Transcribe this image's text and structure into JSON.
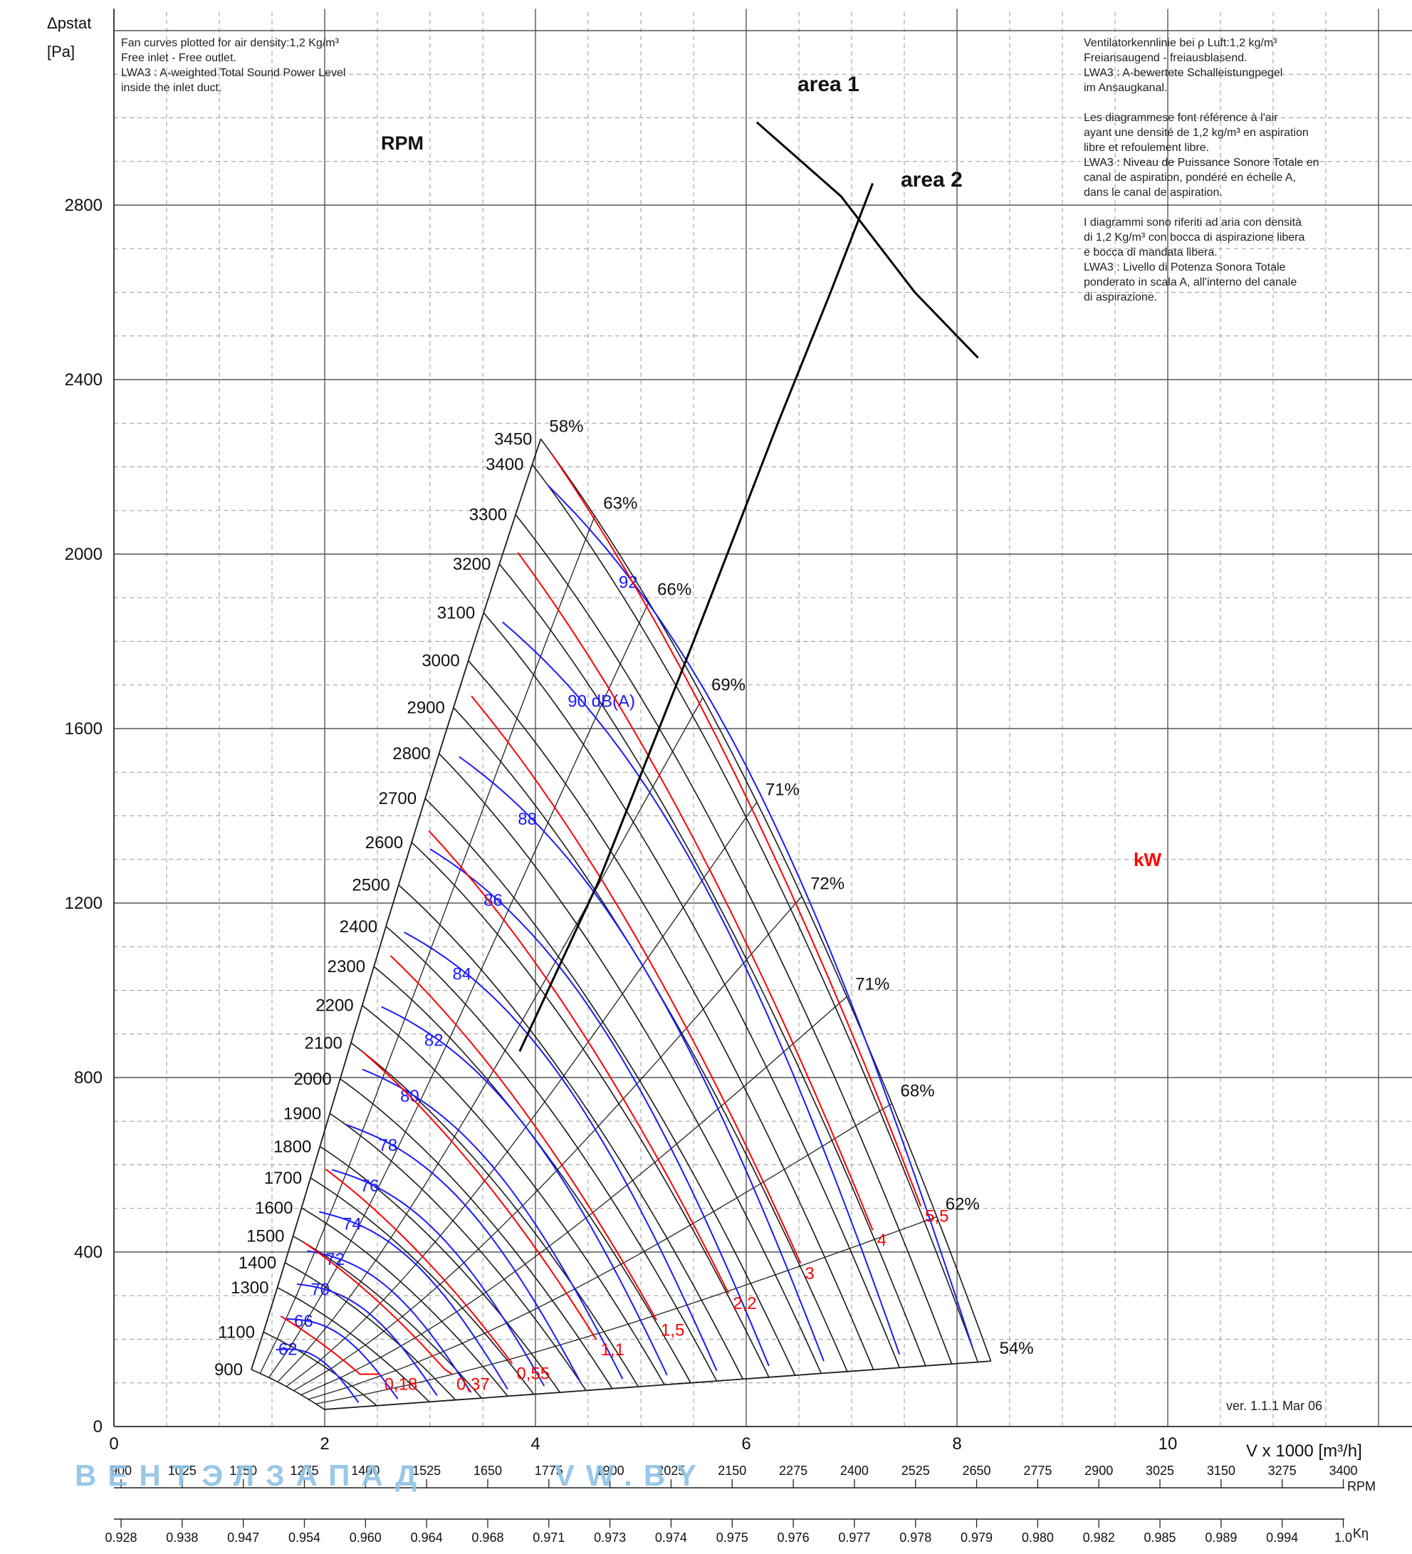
{
  "notes": {
    "left": "Fan curves plotted for air density:1,2 Kg/m³\nFree inlet - Free outlet.\nLWA3 : A-weighted Total Sound Power Level\ninside the inlet duct.",
    "right": "Ventilatorkennlinie bei ρ Luft:1,2 kg/m³\nFreiansaugend - freiausblasend.\nLWA3 : A-bewertete Schalleistungpegel\nim Ansaugkanal.\n\nLes diagrammese font référence à l'air\nayant une densité de 1,2 kg/m³ en aspiration\nlibre et refoulement libre.\nLWA3 : Niveau de Puissance Sonore Totale en\ncanal de aspiration, pondéré en échelle A,\ndans le canal de aspiration.\n\nI diagrammi sono riferiti ad aria con densità\ndi 1,2 Kg/m³ con bocca di aspirazione libera\ne bocca di mandata libera.\nLWA3 : Livello di Potenza Sonora Totale\nponderato in scala A, all'interno del canale\ndi aspirazione."
  },
  "version": "ver. 1.1.1 Mar 06",
  "watermark": "ВЕНТЭЛЗАПАД",
  "watermark_url": "VW.BY",
  "colors": {
    "speed": "#1a1a1a",
    "sound": "#1a1aff",
    "power": "#ff0000",
    "grid": "#555555",
    "area": "#000000"
  },
  "chart_data": {
    "type": "line",
    "ylabel": "Δpstat",
    "yunit": "[Pa]",
    "xlabel": "V x 1000 [m³/h]",
    "xlim": [
      0,
      12.6
    ],
    "ylim": [
      0,
      3250
    ],
    "x_ticks": [
      0,
      2,
      4,
      6,
      8,
      10
    ],
    "y_ticks": [
      0,
      400,
      800,
      1200,
      1600,
      2000,
      2400,
      2800
    ],
    "grid": true,
    "rpm_header": "RPM",
    "speed_curves": [
      {
        "rpm": 900,
        "label": "900"
      },
      {
        "rpm": 1100,
        "label": "1100"
      },
      {
        "rpm": 1300,
        "label": "1300"
      },
      {
        "rpm": 1400,
        "label": "1400"
      },
      {
        "rpm": 1500,
        "label": "1500"
      },
      {
        "rpm": 1600,
        "label": "1600"
      },
      {
        "rpm": 1700,
        "label": "1700"
      },
      {
        "rpm": 1800,
        "label": "1800"
      },
      {
        "rpm": 1900,
        "label": "1900"
      },
      {
        "rpm": 2000,
        "label": "2000"
      },
      {
        "rpm": 2100,
        "label": "2100"
      },
      {
        "rpm": 2200,
        "label": "2200"
      },
      {
        "rpm": 2300,
        "label": "2300"
      },
      {
        "rpm": 2400,
        "label": "2400"
      },
      {
        "rpm": 2500,
        "label": "2500"
      },
      {
        "rpm": 2600,
        "label": "2600"
      },
      {
        "rpm": 2700,
        "label": "2700"
      },
      {
        "rpm": 2800,
        "label": "2800"
      },
      {
        "rpm": 2900,
        "label": "2900"
      },
      {
        "rpm": 3000,
        "label": "3000"
      },
      {
        "rpm": 3100,
        "label": "3100"
      },
      {
        "rpm": 3200,
        "label": "3200"
      },
      {
        "rpm": 3300,
        "label": "3300"
      },
      {
        "rpm": 3400,
        "label": "3400"
      },
      {
        "rpm": 3450,
        "label": "3450"
      }
    ],
    "efficiency_labels": [
      "58%",
      "63%",
      "66%",
      "69%",
      "71%",
      "72%",
      "71%",
      "68%",
      "62%",
      "54%"
    ],
    "sound_levels": [
      "62",
      "66",
      "70",
      "72",
      "74",
      "76",
      "78",
      "80",
      "82",
      "84",
      "86",
      "88",
      "90 dB(A)",
      "92"
    ],
    "power_lines_kW": [
      "0,18",
      "0,37",
      "0,55",
      "1,1",
      "1,5",
      "2,2",
      "3",
      "4",
      "5,5"
    ],
    "power_unit": "kW",
    "areas": [
      "area 1",
      "area 2"
    ],
    "rpm_scale": {
      "label": "RPM",
      "values": [
        "900",
        "1025",
        "1150",
        "1275",
        "1400",
        "1525",
        "1650",
        "1775",
        "1900",
        "2025",
        "2150",
        "2275",
        "2400",
        "2525",
        "2650",
        "2775",
        "2900",
        "3025",
        "3150",
        "3275",
        "3400"
      ]
    },
    "keta_scale": {
      "label": "Kη",
      "values": [
        "0.928",
        "0.938",
        "0.947",
        "0.954",
        "0.960",
        "0.964",
        "0.968",
        "0.971",
        "0.973",
        "0.974",
        "0.975",
        "0.976",
        "0.977",
        "0.978",
        "0.979",
        "0.980",
        "0.982",
        "0.985",
        "0.989",
        "0.994",
        "1.0"
      ]
    }
  }
}
